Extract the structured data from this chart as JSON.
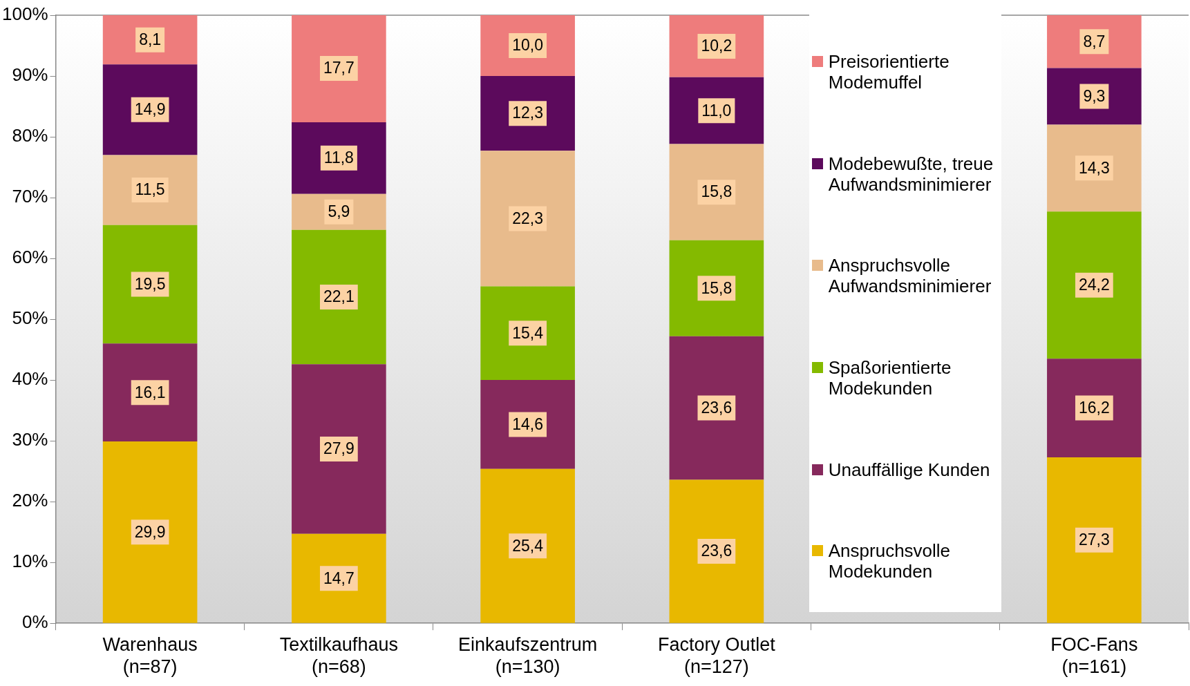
{
  "chart_data": {
    "type": "bar",
    "stacked": true,
    "categories": [
      "Warenhaus\n(n=87)",
      "Textilkaufhaus\n(n=68)",
      "Einkaufszentrum\n(n=130)",
      "Factory Outlet\n(n=127)",
      null,
      "FOC-Fans\n(n=161)"
    ],
    "series": [
      {
        "name": "Anspruchsvolle Modekunden",
        "color": "#e8b800",
        "values": [
          29.9,
          14.7,
          25.4,
          23.6,
          null,
          27.3
        ],
        "value_labels": [
          "29,9",
          "14,7",
          "25,4",
          "23,6",
          null,
          "27,3"
        ]
      },
      {
        "name": "Unauffällige Kunden",
        "color": "#86295c",
        "values": [
          16.1,
          27.9,
          14.6,
          23.6,
          null,
          16.2
        ],
        "value_labels": [
          "16,1",
          "27,9",
          "14,6",
          "23,6",
          null,
          "16,2"
        ]
      },
      {
        "name": "Spaßorientierte Modekunden",
        "color": "#84ba00",
        "values": [
          19.5,
          22.1,
          15.4,
          15.8,
          null,
          24.2
        ],
        "value_labels": [
          "19,5",
          "22,1",
          "15,4",
          "15,8",
          null,
          "24,2"
        ]
      },
      {
        "name": "Anspruchsvolle Aufwandsminimierer",
        "color": "#e8bb8c",
        "values": [
          11.5,
          5.9,
          22.3,
          15.8,
          null,
          14.3
        ],
        "value_labels": [
          "11,5",
          "5,9",
          "22,3",
          "15,8",
          null,
          "14,3"
        ]
      },
      {
        "name": "Modebewußte, treue Aufwandsminimierer",
        "color": "#5c0a5c",
        "values": [
          14.9,
          11.8,
          12.3,
          11.0,
          null,
          9.3
        ],
        "value_labels": [
          "14,9",
          "11,8",
          "12,3",
          "11,0",
          null,
          "9,3"
        ]
      },
      {
        "name": "Preisorientierte Modemuffel",
        "color": "#ee7c7c",
        "values": [
          8.1,
          17.7,
          10.0,
          10.2,
          null,
          8.7
        ],
        "value_labels": [
          "8,1",
          "17,7",
          "10,0",
          "10,2",
          null,
          "8,7"
        ]
      }
    ],
    "ylim": [
      0,
      100
    ],
    "yticks": [
      {
        "value": 0,
        "label": "0%"
      },
      {
        "value": 10,
        "label": "10%"
      },
      {
        "value": 20,
        "label": "20%"
      },
      {
        "value": 30,
        "label": "30%"
      },
      {
        "value": 40,
        "label": "40%"
      },
      {
        "value": 50,
        "label": "50%"
      },
      {
        "value": 60,
        "label": "60%"
      },
      {
        "value": 70,
        "label": "70%"
      },
      {
        "value": 80,
        "label": "80%"
      },
      {
        "value": 90,
        "label": "90%"
      },
      {
        "value": 100,
        "label": "100%"
      }
    ],
    "grid": false,
    "legend": "right"
  }
}
